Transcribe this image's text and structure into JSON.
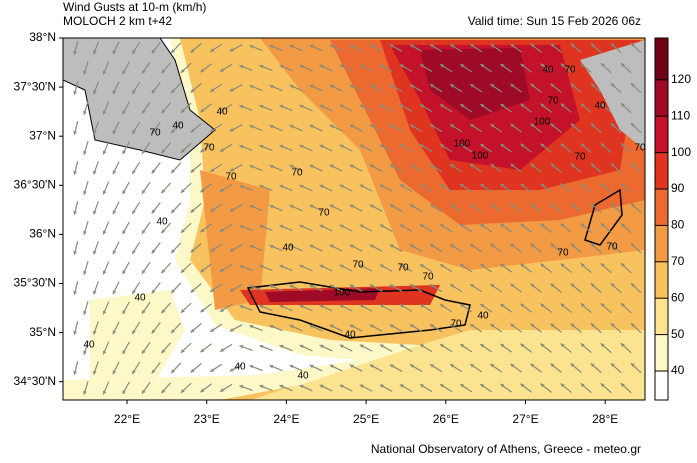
{
  "header": {
    "title": "Wind Gusts at 10-m (km/h)",
    "subtitle": "MOLOCH 2 km t+42",
    "valid_time": "Valid time: Sun 15 Feb 2026 06z"
  },
  "map": {
    "lat_labels": [
      "38°N",
      "37°30'N",
      "37°N",
      "36°30'N",
      "36°N",
      "35°30'N",
      "35°N",
      "34°30'N"
    ],
    "lon_labels": [
      "22°E",
      "23°E",
      "24°E",
      "25°E",
      "26°E",
      "27°E",
      "28°E"
    ],
    "contour_labels": [
      40,
      40,
      70,
      40,
      70,
      70,
      40,
      70,
      70,
      70,
      70,
      70,
      40,
      40,
      40,
      40,
      40,
      100,
      100,
      100,
      70,
      70,
      100,
      70,
      40,
      70,
      70,
      40,
      70,
      70,
      40
    ]
  },
  "legend": {
    "levels": [
      40,
      50,
      60,
      70,
      80,
      90,
      100,
      110,
      120
    ],
    "colors": [
      "#ffffff",
      "#fdf8c8",
      "#fbe38f",
      "#f8c25e",
      "#f39a45",
      "#ec6a2f",
      "#df3420",
      "#c4122a",
      "#9f0a26",
      "#700016"
    ]
  },
  "footer": {
    "credit": "National Observatory of Athens, Greece - meteo.gr"
  }
}
